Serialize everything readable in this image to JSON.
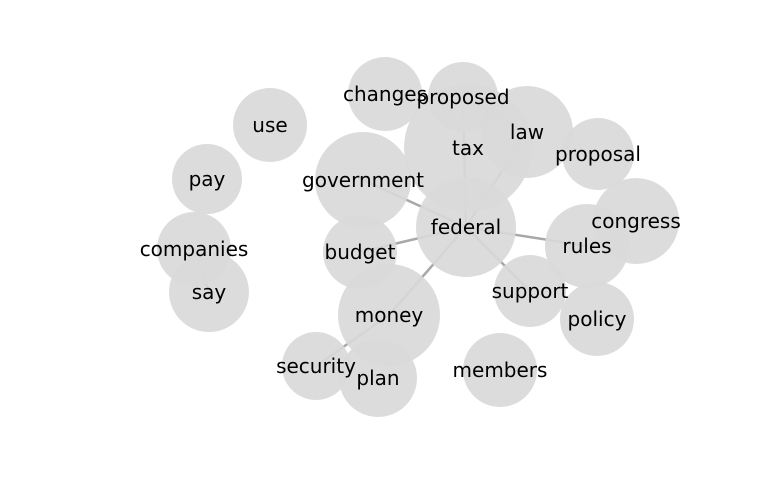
{
  "colors": {
    "node_fill": "#d9d9d9",
    "edge_stroke": "#a8a8a8",
    "label": "#000000",
    "background": "#ffffff"
  },
  "nodes": [
    {
      "id": "use",
      "label": "use"
    },
    {
      "id": "changes",
      "label": "changes"
    },
    {
      "id": "proposed",
      "label": "proposed"
    },
    {
      "id": "law",
      "label": "law"
    },
    {
      "id": "tax",
      "label": "tax"
    },
    {
      "id": "proposal",
      "label": "proposal"
    },
    {
      "id": "pay",
      "label": "pay"
    },
    {
      "id": "government",
      "label": "government"
    },
    {
      "id": "congress",
      "label": "congress"
    },
    {
      "id": "federal",
      "label": "federal"
    },
    {
      "id": "companies",
      "label": "companies"
    },
    {
      "id": "budget",
      "label": "budget"
    },
    {
      "id": "rules",
      "label": "rules"
    },
    {
      "id": "say",
      "label": "say"
    },
    {
      "id": "support",
      "label": "support"
    },
    {
      "id": "money",
      "label": "money"
    },
    {
      "id": "policy",
      "label": "policy"
    },
    {
      "id": "security",
      "label": "security"
    },
    {
      "id": "members",
      "label": "members"
    },
    {
      "id": "plan",
      "label": "plan"
    }
  ],
  "edges": [
    {
      "source": "federal",
      "target": "government"
    },
    {
      "source": "federal",
      "target": "budget"
    },
    {
      "source": "federal",
      "target": "money"
    },
    {
      "source": "federal",
      "target": "support"
    },
    {
      "source": "federal",
      "target": "rules"
    },
    {
      "source": "federal",
      "target": "law"
    },
    {
      "source": "federal",
      "target": "proposed"
    },
    {
      "source": "proposed",
      "target": "law"
    },
    {
      "source": "money",
      "target": "security"
    },
    {
      "source": "companies",
      "target": "say"
    }
  ]
}
